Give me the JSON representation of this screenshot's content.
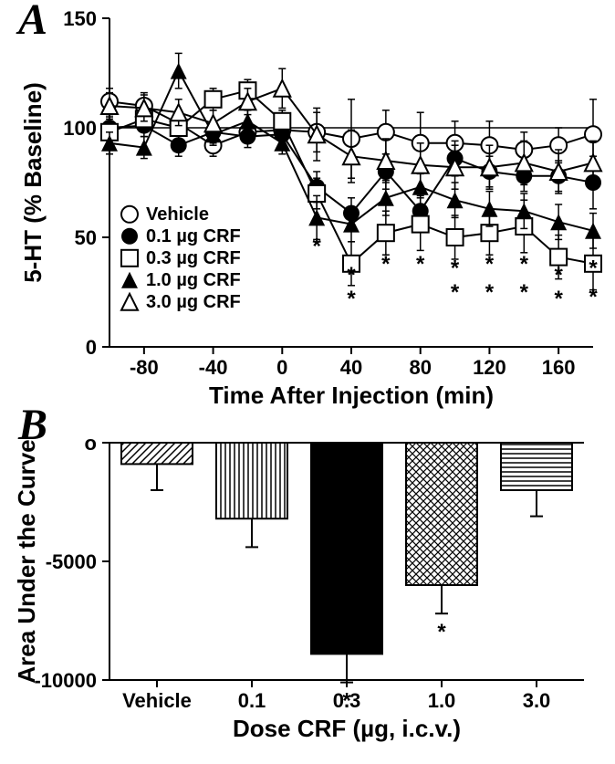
{
  "panelA": {
    "label": "A",
    "type": "line",
    "xlabel": "Time  After  Injection  (min)",
    "ylabel": "5-HT (% Baseline)",
    "xlim": [
      -100,
      180
    ],
    "ylim": [
      0,
      150
    ],
    "xtick_step": 40,
    "xtick_start": -80,
    "ytick_step": 50,
    "tick_fontsize": 22,
    "axis_title_fontsize": 26,
    "background_color": "#ffffff",
    "baseline_y": 100,
    "series": [
      {
        "name": "Vehicle",
        "marker": "circle-open",
        "label": "Vehicle",
        "x": [
          -100,
          -80,
          -60,
          -40,
          -20,
          0,
          20,
          40,
          60,
          80,
          100,
          120,
          140,
          160,
          180
        ],
        "y": [
          112,
          110,
          102,
          92,
          98,
          99,
          98,
          95,
          98,
          93,
          93,
          92,
          90,
          92,
          97
        ],
        "err_up": [
          6,
          6,
          5,
          5,
          5,
          5,
          9,
          18,
          10,
          14,
          10,
          11,
          8,
          8,
          16
        ],
        "err_dn": [
          6,
          6,
          5,
          5,
          5,
          5,
          9,
          18,
          10,
          14,
          10,
          11,
          8,
          8,
          16
        ]
      },
      {
        "name": "0.1 µg CRF",
        "marker": "circle-solid",
        "label": "0.1 µg CRF",
        "x": [
          -100,
          -80,
          -60,
          -40,
          -20,
          0,
          20,
          40,
          60,
          80,
          100,
          120,
          140,
          160,
          180
        ],
        "y": [
          100,
          101,
          92,
          98,
          96,
          97,
          73,
          61,
          80,
          62,
          86,
          80,
          78,
          78,
          75
        ],
        "err_up": [
          5,
          5,
          5,
          5,
          5,
          5,
          7,
          7,
          8,
          7,
          8,
          7,
          7,
          7,
          12
        ],
        "err_dn": [
          5,
          5,
          5,
          5,
          5,
          5,
          7,
          7,
          8,
          7,
          8,
          7,
          7,
          7,
          12
        ]
      },
      {
        "name": "0.3 µg CRF",
        "marker": "square-open",
        "label": "0.3 µg CRF",
        "x": [
          -100,
          -80,
          -60,
          -40,
          -20,
          0,
          20,
          40,
          60,
          80,
          100,
          120,
          140,
          160,
          180
        ],
        "y": [
          98,
          104,
          100,
          113,
          117,
          103,
          70,
          38,
          52,
          56,
          50,
          52,
          55,
          41,
          38
        ],
        "err_up": [
          5,
          5,
          5,
          5,
          5,
          5,
          7,
          10,
          10,
          12,
          10,
          10,
          12,
          10,
          12
        ],
        "err_dn": [
          5,
          5,
          5,
          5,
          5,
          5,
          7,
          10,
          10,
          12,
          10,
          10,
          12,
          10,
          12
        ]
      },
      {
        "name": "1.0 µg CRF",
        "marker": "triangle-solid",
        "label": "1.0 µg CRF",
        "x": [
          -100,
          -80,
          -60,
          -40,
          -20,
          0,
          20,
          40,
          60,
          80,
          100,
          120,
          140,
          160,
          180
        ],
        "y": [
          93,
          91,
          126,
          97,
          103,
          93,
          59,
          56,
          68,
          73,
          67,
          63,
          62,
          57,
          53
        ],
        "err_up": [
          5,
          5,
          8,
          5,
          5,
          5,
          10,
          8,
          8,
          8,
          8,
          8,
          8,
          8,
          8
        ],
        "err_dn": [
          5,
          5,
          8,
          5,
          5,
          5,
          10,
          8,
          8,
          8,
          8,
          8,
          8,
          8,
          8
        ]
      },
      {
        "name": "3.0 µg CRF",
        "marker": "triangle-open",
        "label": "3.0 µg CRF",
        "x": [
          -100,
          -80,
          -60,
          -40,
          -20,
          0,
          20,
          40,
          60,
          80,
          100,
          120,
          140,
          160,
          180
        ],
        "y": [
          110,
          109,
          107,
          102,
          112,
          118,
          97,
          87,
          85,
          83,
          82,
          82,
          84,
          80,
          84
        ],
        "err_up": [
          6,
          6,
          6,
          6,
          6,
          9,
          12,
          12,
          10,
          10,
          10,
          10,
          10,
          10,
          10
        ],
        "err_dn": [
          6,
          6,
          6,
          6,
          6,
          9,
          12,
          12,
          10,
          10,
          10,
          10,
          10,
          10,
          10
        ]
      }
    ],
    "star_points": [
      {
        "x": 20,
        "y": 46
      },
      {
        "x": 40,
        "y": 22
      },
      {
        "x": 40,
        "y": 33
      },
      {
        "x": 60,
        "y": 38
      },
      {
        "x": 80,
        "y": 38
      },
      {
        "x": 100,
        "y": 36
      },
      {
        "x": 100,
        "y": 25
      },
      {
        "x": 120,
        "y": 38
      },
      {
        "x": 120,
        "y": 25
      },
      {
        "x": 140,
        "y": 25
      },
      {
        "x": 140,
        "y": 38
      },
      {
        "x": 160,
        "y": 22
      },
      {
        "x": 160,
        "y": 33
      },
      {
        "x": 180,
        "y": 36
      },
      {
        "x": 180,
        "y": 23
      }
    ],
    "marker_size": 9
  },
  "panelB": {
    "label": "B",
    "type": "bar",
    "xlabel": "Dose CRF (µg, i.c.v.)",
    "ylabel": "Area Under the Curve",
    "categories": [
      "Vehicle",
      "0.1",
      "0.3",
      "1.0",
      "3.0"
    ],
    "values": [
      -900,
      -3200,
      -8900,
      -6000,
      -2000
    ],
    "errors": [
      1100,
      1200,
      1200,
      1200,
      1100
    ],
    "stars": [
      false,
      false,
      true,
      true,
      false
    ],
    "ylim": [
      -10000,
      0
    ],
    "yticks": [
      -10000,
      -5000,
      0
    ],
    "ytick_labels": [
      "-10000",
      "-5000",
      "o"
    ],
    "tick_fontsize": 22,
    "axis_title_fontsize": 26,
    "bar_width": 0.75,
    "patterns": [
      "diag",
      "vlines",
      "solid",
      "cross",
      "hlines"
    ],
    "background_color": "#ffffff"
  }
}
